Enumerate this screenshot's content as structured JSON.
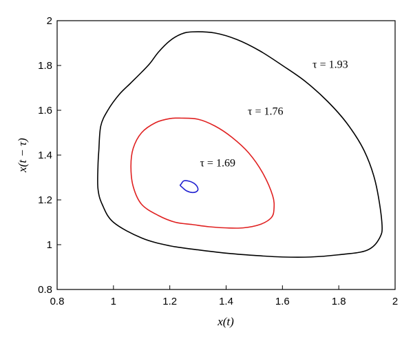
{
  "chart_data": {
    "type": "line",
    "xlabel": "x(t)",
    "ylabel": "x(t − τ)",
    "xlim": [
      0.8,
      2
    ],
    "ylim": [
      0.8,
      2
    ],
    "xticks": [
      "0.8",
      "1",
      "1.2",
      "1.4",
      "1.6",
      "1.8",
      "2"
    ],
    "yticks": [
      "0.8",
      "1",
      "1.2",
      "1.4",
      "1.6",
      "1.8",
      "2"
    ],
    "grid": false,
    "series": [
      {
        "name": "τ = 1.93",
        "color": "#000000",
        "label_at": [
          1.77,
          1.79
        ],
        "x": [
          1.28,
          1.36,
          1.44,
          1.52,
          1.6,
          1.68,
          1.76,
          1.83,
          1.89,
          1.93,
          1.953,
          1.945,
          1.9,
          1.8,
          1.7,
          1.6,
          1.5,
          1.4,
          1.3,
          1.2,
          1.1,
          1.0,
          0.96,
          0.945,
          0.945,
          0.948,
          0.955,
          0.98,
          1.02,
          1.06,
          1.1,
          1.13,
          1.16,
          1.2,
          1.24,
          1.28
        ],
        "y": [
          1.95,
          1.945,
          1.915,
          1.865,
          1.8,
          1.73,
          1.64,
          1.54,
          1.42,
          1.28,
          1.1,
          1.03,
          0.975,
          0.955,
          0.945,
          0.945,
          0.952,
          0.962,
          0.977,
          0.995,
          1.03,
          1.1,
          1.18,
          1.25,
          1.35,
          1.42,
          1.53,
          1.6,
          1.67,
          1.72,
          1.77,
          1.81,
          1.86,
          1.91,
          1.94,
          1.95
        ]
      },
      {
        "name": "τ = 1.76",
        "color": "#e02020",
        "label_at": [
          1.54,
          1.58
        ],
        "x": [
          1.24,
          1.3,
          1.36,
          1.42,
          1.48,
          1.53,
          1.565,
          1.57,
          1.56,
          1.52,
          1.46,
          1.4,
          1.34,
          1.28,
          1.22,
          1.16,
          1.1,
          1.07,
          1.062,
          1.07,
          1.1,
          1.15,
          1.2,
          1.24
        ],
        "y": [
          1.565,
          1.56,
          1.53,
          1.48,
          1.41,
          1.32,
          1.22,
          1.16,
          1.12,
          1.09,
          1.075,
          1.075,
          1.08,
          1.09,
          1.1,
          1.13,
          1.18,
          1.26,
          1.35,
          1.43,
          1.5,
          1.545,
          1.563,
          1.565
        ]
      },
      {
        "name": "τ = 1.69",
        "color": "#2020d0",
        "label_at": [
          1.37,
          1.35
        ],
        "x": [
          1.24,
          1.25,
          1.27,
          1.29,
          1.3,
          1.295,
          1.28,
          1.26,
          1.245,
          1.237,
          1.24
        ],
        "y": [
          1.27,
          1.285,
          1.283,
          1.27,
          1.25,
          1.237,
          1.233,
          1.24,
          1.255,
          1.265,
          1.27
        ]
      }
    ]
  }
}
